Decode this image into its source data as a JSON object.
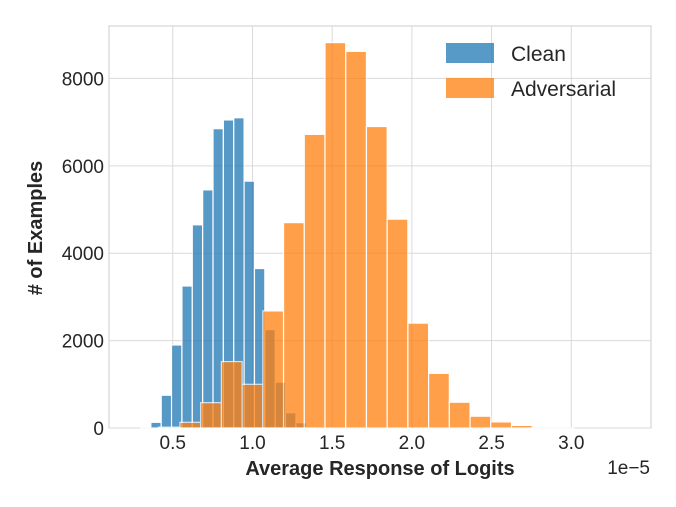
{
  "chart_data": {
    "type": "bar",
    "subtype": "histogram",
    "title": "",
    "xlabel": "Average Response of Logits",
    "ylabel": "# of Examples",
    "x_offset_label": "1e−5",
    "xlim": [
      0.1,
      3.5
    ],
    "ylim": [
      0,
      9200
    ],
    "xticks": [
      0.5,
      1.0,
      1.5,
      2.0,
      2.5,
      3.0
    ],
    "xtick_labels": [
      "0.5",
      "1.0",
      "1.5",
      "2.0",
      "2.5",
      "3.0"
    ],
    "yticks": [
      0,
      2000,
      4000,
      6000,
      8000
    ],
    "ytick_labels": [
      "0",
      "2000",
      "4000",
      "6000",
      "8000"
    ],
    "grid": true,
    "legend_position": "top-right",
    "series": [
      {
        "name": "Clean",
        "color": "#1f77b4",
        "bin_width": 0.065,
        "bins": [
          [
            0.33,
            20
          ],
          [
            0.395,
            130
          ],
          [
            0.46,
            750
          ],
          [
            0.525,
            1900
          ],
          [
            0.59,
            3250
          ],
          [
            0.655,
            4650
          ],
          [
            0.72,
            5450
          ],
          [
            0.785,
            6850
          ],
          [
            0.85,
            7050
          ],
          [
            0.915,
            7100
          ],
          [
            0.98,
            5650
          ],
          [
            1.045,
            3650
          ],
          [
            1.11,
            2250
          ],
          [
            1.175,
            1050
          ],
          [
            1.24,
            350
          ],
          [
            1.305,
            120
          ],
          [
            1.37,
            20
          ]
        ]
      },
      {
        "name": "Adversarial",
        "color": "#ff7f0e",
        "bin_width": 0.13,
        "bins": [
          [
            0.475,
            20
          ],
          [
            0.61,
            130
          ],
          [
            0.74,
            580
          ],
          [
            0.87,
            1520
          ],
          [
            1.0,
            1000
          ],
          [
            1.13,
            2680
          ],
          [
            1.26,
            4700
          ],
          [
            1.39,
            6720
          ],
          [
            1.52,
            8820
          ],
          [
            1.65,
            8620
          ],
          [
            1.78,
            6900
          ],
          [
            1.91,
            4780
          ],
          [
            2.04,
            2400
          ],
          [
            2.17,
            1250
          ],
          [
            2.3,
            590
          ],
          [
            2.43,
            270
          ],
          [
            2.56,
            140
          ],
          [
            2.69,
            60
          ],
          [
            2.82,
            20
          ],
          [
            2.95,
            5
          ]
        ]
      }
    ]
  }
}
